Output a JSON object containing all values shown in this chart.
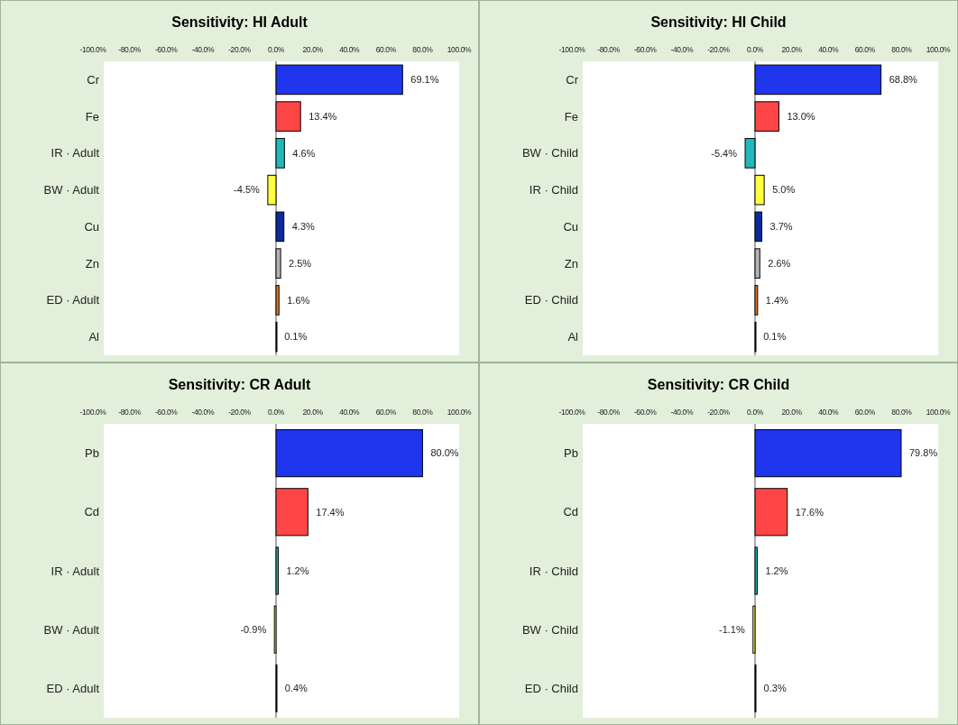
{
  "chart_data": [
    {
      "type": "bar",
      "orientation": "horizontal",
      "title": "Sensitivity: HI Adult",
      "categories": [
        "Cr",
        "Fe",
        "IR · Adult",
        "BW · Adult",
        "Cu",
        "Zn",
        "ED · Adult",
        "Al"
      ],
      "values": [
        69.1,
        13.4,
        4.6,
        -4.5,
        4.3,
        2.5,
        1.6,
        0.1
      ],
      "colors": [
        "#1f35ee",
        "#ff4646",
        "#20b8b8",
        "#ffff40",
        "#0d2a9c",
        "#b4b4b4",
        "#e87722",
        "#ffffff"
      ],
      "value_labels": [
        "69.1%",
        "13.4%",
        "4.6%",
        "-4.5%",
        "4.3%",
        "2.5%",
        "1.6%",
        "0.1%"
      ],
      "xlim": [
        -100,
        100
      ],
      "xticks": [
        {
          "value": -100,
          "label": "-100.0%"
        },
        {
          "value": -80,
          "label": "-80.0%"
        },
        {
          "value": -60,
          "label": "-60.0%"
        },
        {
          "value": -40,
          "label": "-40.0%"
        },
        {
          "value": -20,
          "label": "-20.0%"
        },
        {
          "value": 0,
          "label": "0.0%"
        },
        {
          "value": 20,
          "label": "20.0%"
        },
        {
          "value": 40,
          "label": "40.0%"
        },
        {
          "value": 60,
          "label": "60.0%"
        },
        {
          "value": 80,
          "label": "80.0%"
        },
        {
          "value": 100,
          "label": "100.0%"
        }
      ]
    },
    {
      "type": "bar",
      "orientation": "horizontal",
      "title": "Sensitivity: HI Child",
      "categories": [
        "Cr",
        "Fe",
        "BW · Child",
        "IR · Child",
        "Cu",
        "Zn",
        "ED · Child",
        "Al"
      ],
      "values": [
        68.8,
        13.0,
        -5.4,
        5.0,
        3.7,
        2.6,
        1.4,
        0.1
      ],
      "colors": [
        "#1f35ee",
        "#ff4646",
        "#20b8b8",
        "#ffff40",
        "#0d2a9c",
        "#b4b4b4",
        "#e87722",
        "#ffffff"
      ],
      "value_labels": [
        "68.8%",
        "13.0%",
        "-5.4%",
        "5.0%",
        "3.7%",
        "2.6%",
        "1.4%",
        "0.1%"
      ],
      "xlim": [
        -100,
        100
      ],
      "xticks": [
        {
          "value": -100,
          "label": "-100.0%"
        },
        {
          "value": -80,
          "label": "-80.0%"
        },
        {
          "value": -60,
          "label": "-60.0%"
        },
        {
          "value": -40,
          "label": "-40.0%"
        },
        {
          "value": -20,
          "label": "-20.0%"
        },
        {
          "value": 0,
          "label": "0.0%"
        },
        {
          "value": 20,
          "label": "20.0%"
        },
        {
          "value": 40,
          "label": "40.0%"
        },
        {
          "value": 60,
          "label": "60.0%"
        },
        {
          "value": 80,
          "label": "80.0%"
        },
        {
          "value": 100,
          "label": "100.0%"
        }
      ]
    },
    {
      "type": "bar",
      "orientation": "horizontal",
      "title": "Sensitivity: CR Adult",
      "categories": [
        "Pb",
        "Cd",
        "IR · Adult",
        "BW · Adult",
        "ED · Adult"
      ],
      "values": [
        80.0,
        17.4,
        1.2,
        -0.9,
        0.4
      ],
      "colors": [
        "#1f35ee",
        "#ff4646",
        "#20b8b8",
        "#ffff40",
        "#333333"
      ],
      "value_labels": [
        "80.0%",
        "17.4%",
        "1.2%",
        "-0.9%",
        "0.4%"
      ],
      "xlim": [
        -100,
        100
      ],
      "xticks": [
        {
          "value": -100,
          "label": "-100.0%"
        },
        {
          "value": -80,
          "label": "-80.0%"
        },
        {
          "value": -60,
          "label": "-60.0%"
        },
        {
          "value": -40,
          "label": "-40.0%"
        },
        {
          "value": -20,
          "label": "-20.0%"
        },
        {
          "value": 0,
          "label": "0.0%"
        },
        {
          "value": 20,
          "label": "20.0%"
        },
        {
          "value": 40,
          "label": "40.0%"
        },
        {
          "value": 60,
          "label": "60.0%"
        },
        {
          "value": 80,
          "label": "80.0%"
        },
        {
          "value": 100,
          "label": "100.0%"
        }
      ]
    },
    {
      "type": "bar",
      "orientation": "horizontal",
      "title": "Sensitivity: CR Child",
      "categories": [
        "Pb",
        "Cd",
        "IR · Child",
        "BW · Child",
        "ED · Child"
      ],
      "values": [
        79.8,
        17.6,
        1.2,
        -1.1,
        0.3
      ],
      "colors": [
        "#1f35ee",
        "#ff4646",
        "#20b8b8",
        "#ffff40",
        "#333333"
      ],
      "value_labels": [
        "79.8%",
        "17.6%",
        "1.2%",
        "-1.1%",
        "0.3%"
      ],
      "xlim": [
        -100,
        100
      ],
      "xticks": [
        {
          "value": -100,
          "label": "-100.0%"
        },
        {
          "value": -80,
          "label": "-80.0%"
        },
        {
          "value": -60,
          "label": "-60.0%"
        },
        {
          "value": -40,
          "label": "-40.0%"
        },
        {
          "value": -20,
          "label": "-20.0%"
        },
        {
          "value": 0,
          "label": "0.0%"
        },
        {
          "value": 20,
          "label": "20.0%"
        },
        {
          "value": 40,
          "label": "40.0%"
        },
        {
          "value": 60,
          "label": "60.0%"
        },
        {
          "value": 80,
          "label": "80.0%"
        },
        {
          "value": 100,
          "label": "100.0%"
        }
      ]
    }
  ]
}
